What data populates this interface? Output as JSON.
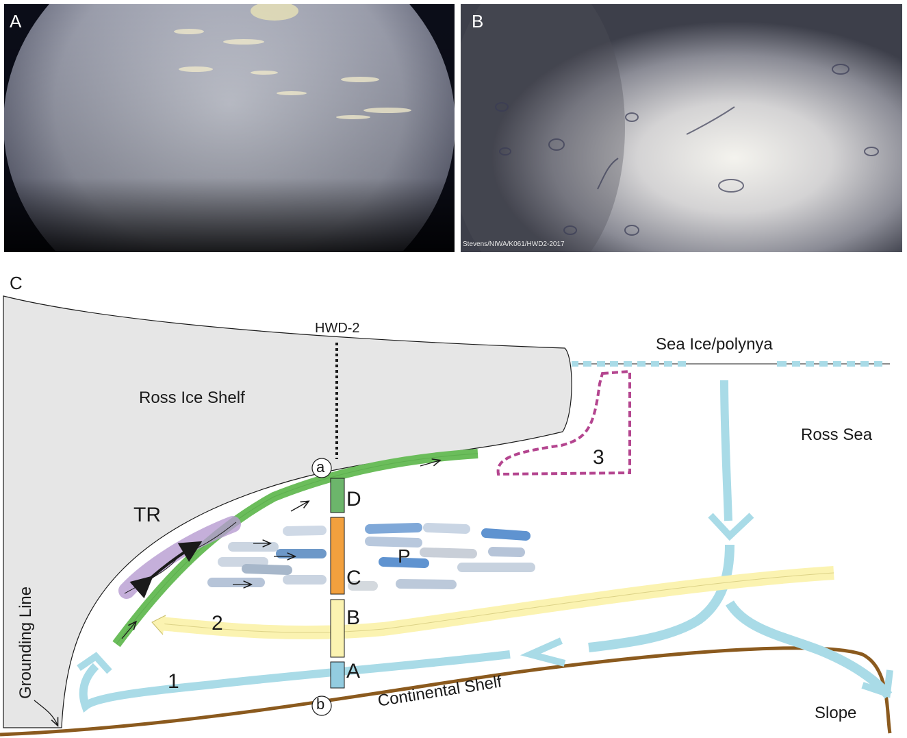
{
  "panels": {
    "a": {
      "letter": "A"
    },
    "b": {
      "letter": "B",
      "credit": "Stevens/NIWA/K061/HWD2-2017"
    },
    "c": {
      "letter": "C"
    }
  },
  "diagram": {
    "borehole": "HWD-2",
    "sea_ice": "Sea Ice/polynya",
    "ice_shelf": "Ross Ice Shelf",
    "ross_sea": "Ross Sea",
    "grounding_line": "Grounding Line",
    "continental_shelf": "Continental Shelf",
    "slope": "Slope",
    "tr": "TR",
    "p": "P",
    "unit_d": "D",
    "unit_c": "C",
    "unit_b": "B",
    "unit_a": "A",
    "flow_1": "1",
    "flow_2": "2",
    "flow_3": "3",
    "point_a": "a",
    "point_b": "b"
  },
  "colors": {
    "ice_shelf_fill": "#e6e6e6",
    "green_flow": "#6bbd5b",
    "cyan_flow": "#a9dbe7",
    "yellow_flow": "#fbf3b1",
    "magenta_dash": "#b4458f",
    "sea_floor": "#8b5a1e",
    "unit_d": "#6cb56b",
    "unit_c": "#f2a03e",
    "unit_b": "#fbf3b1",
    "unit_a": "#93cce0",
    "tr_purple": "#b79bd1"
  }
}
